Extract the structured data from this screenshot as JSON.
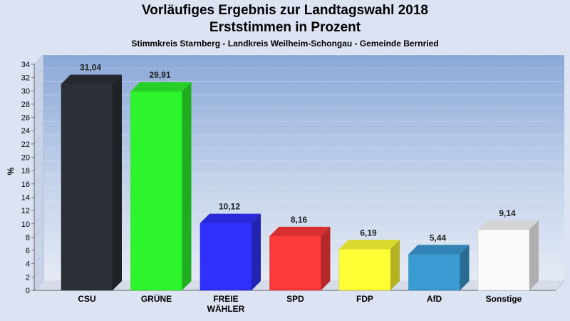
{
  "chart_data": {
    "type": "bar",
    "title": "Vorläufiges Ergebnis zur Landtagswahl 2018",
    "subtitle": "Erststimmen in Prozent",
    "caption": "Stimmkreis Starnberg - Landkreis Weilheim-Schongau - Gemeinde Bernried",
    "ylabel": "%",
    "ylim": [
      0,
      34
    ],
    "ytick_step": 2,
    "grid": true,
    "categories": [
      "CSU",
      "GRÜNE",
      "FREIE WÄHLER",
      "SPD",
      "FDP",
      "AfD",
      "Sonstige"
    ],
    "category_lines": [
      [
        "CSU"
      ],
      [
        "GRÜNE"
      ],
      [
        "FREIE",
        "WÄHLER"
      ],
      [
        "SPD"
      ],
      [
        "FDP"
      ],
      [
        "AfD"
      ],
      [
        "Sonstige"
      ]
    ],
    "values": [
      31.04,
      29.91,
      10.12,
      8.16,
      6.19,
      5.44,
      9.14
    ],
    "value_labels": [
      "31,04",
      "29,91",
      "10,12",
      "8,16",
      "6,19",
      "5,44",
      "9,14"
    ],
    "colors": [
      "#2b2f36",
      "#2df52d",
      "#3030ff",
      "#ff3a3a",
      "#ffff35",
      "#3a9ad2",
      "#fafafa"
    ]
  }
}
